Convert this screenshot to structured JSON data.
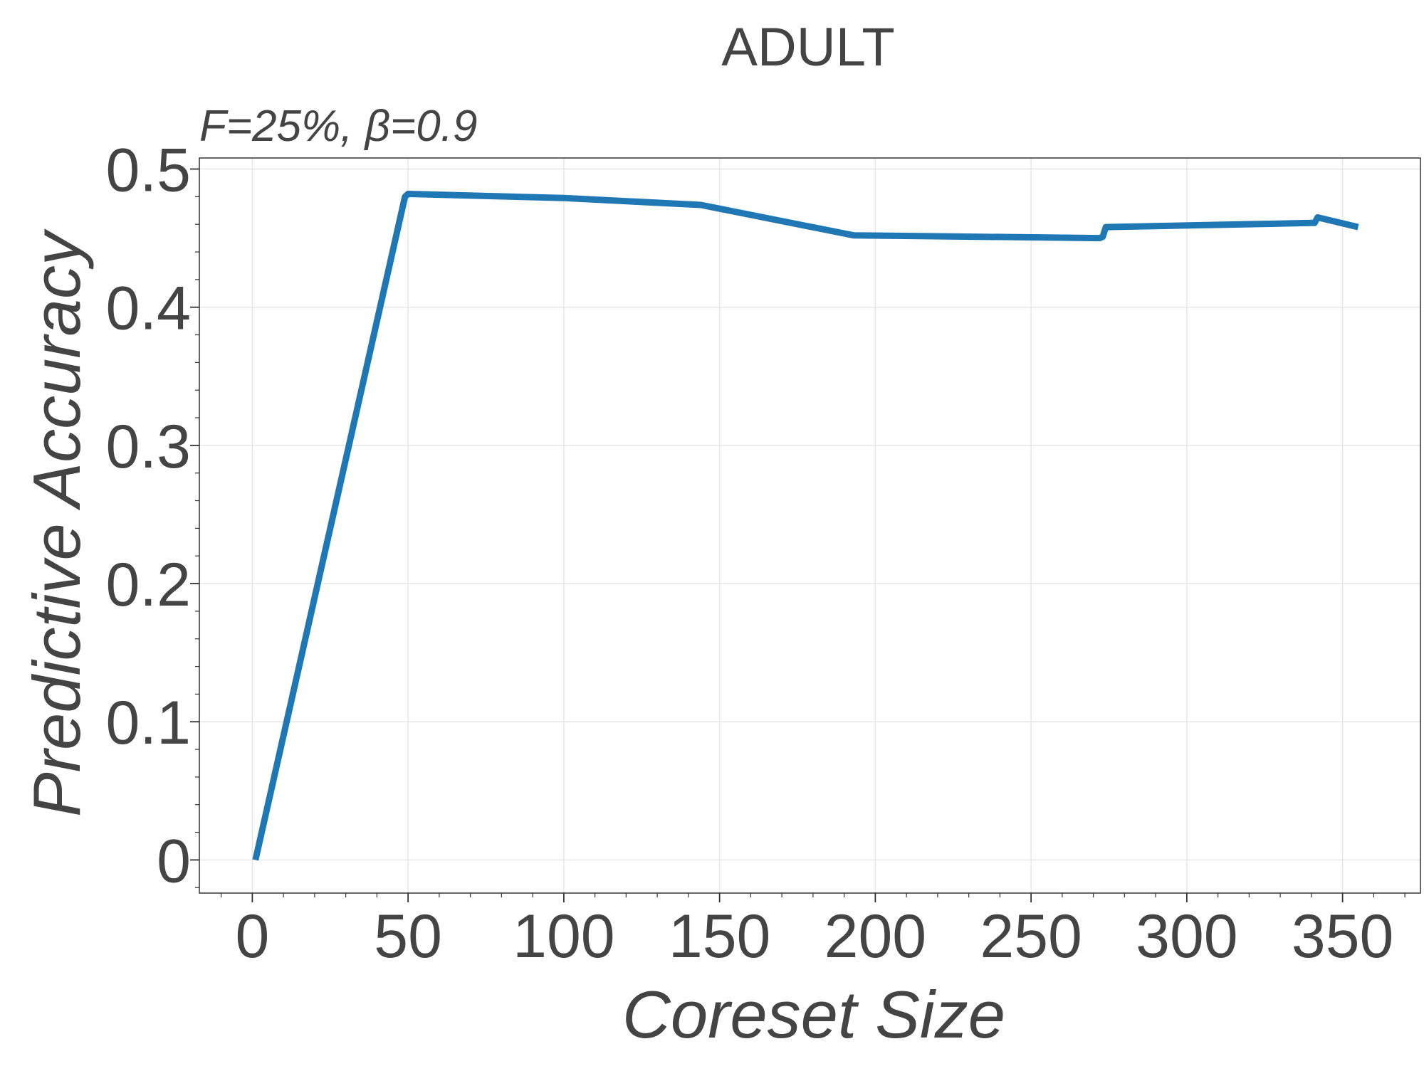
{
  "chart_data": {
    "type": "line",
    "title": "ADULT",
    "subtitle": "F=25%,  β=0.9",
    "xlabel": "Coreset Size",
    "ylabel": "Predictive Accuracy",
    "xlim": [
      -17,
      375
    ],
    "ylim": [
      -0.024,
      0.508
    ],
    "x_ticks": [
      0,
      50,
      100,
      150,
      200,
      250,
      300,
      350
    ],
    "x_tick_labels": [
      "0",
      "50",
      "100",
      "150",
      "200",
      "250",
      "300",
      "350"
    ],
    "y_ticks": [
      0,
      0.1,
      0.2,
      0.3,
      0.4,
      0.5
    ],
    "y_tick_labels": [
      "0",
      "0.1",
      "0.2",
      "0.3",
      "0.4",
      "0.5"
    ],
    "grid": true,
    "series": [
      {
        "color": "#1f77b4",
        "x": [
          1,
          49,
          50,
          100,
          144,
          193,
          272,
          273,
          274,
          340,
          341,
          342,
          355
        ],
        "y": [
          0.0,
          0.48,
          0.482,
          0.479,
          0.474,
          0.452,
          0.45,
          0.451,
          0.458,
          0.461,
          0.461,
          0.465,
          0.458
        ]
      }
    ]
  }
}
